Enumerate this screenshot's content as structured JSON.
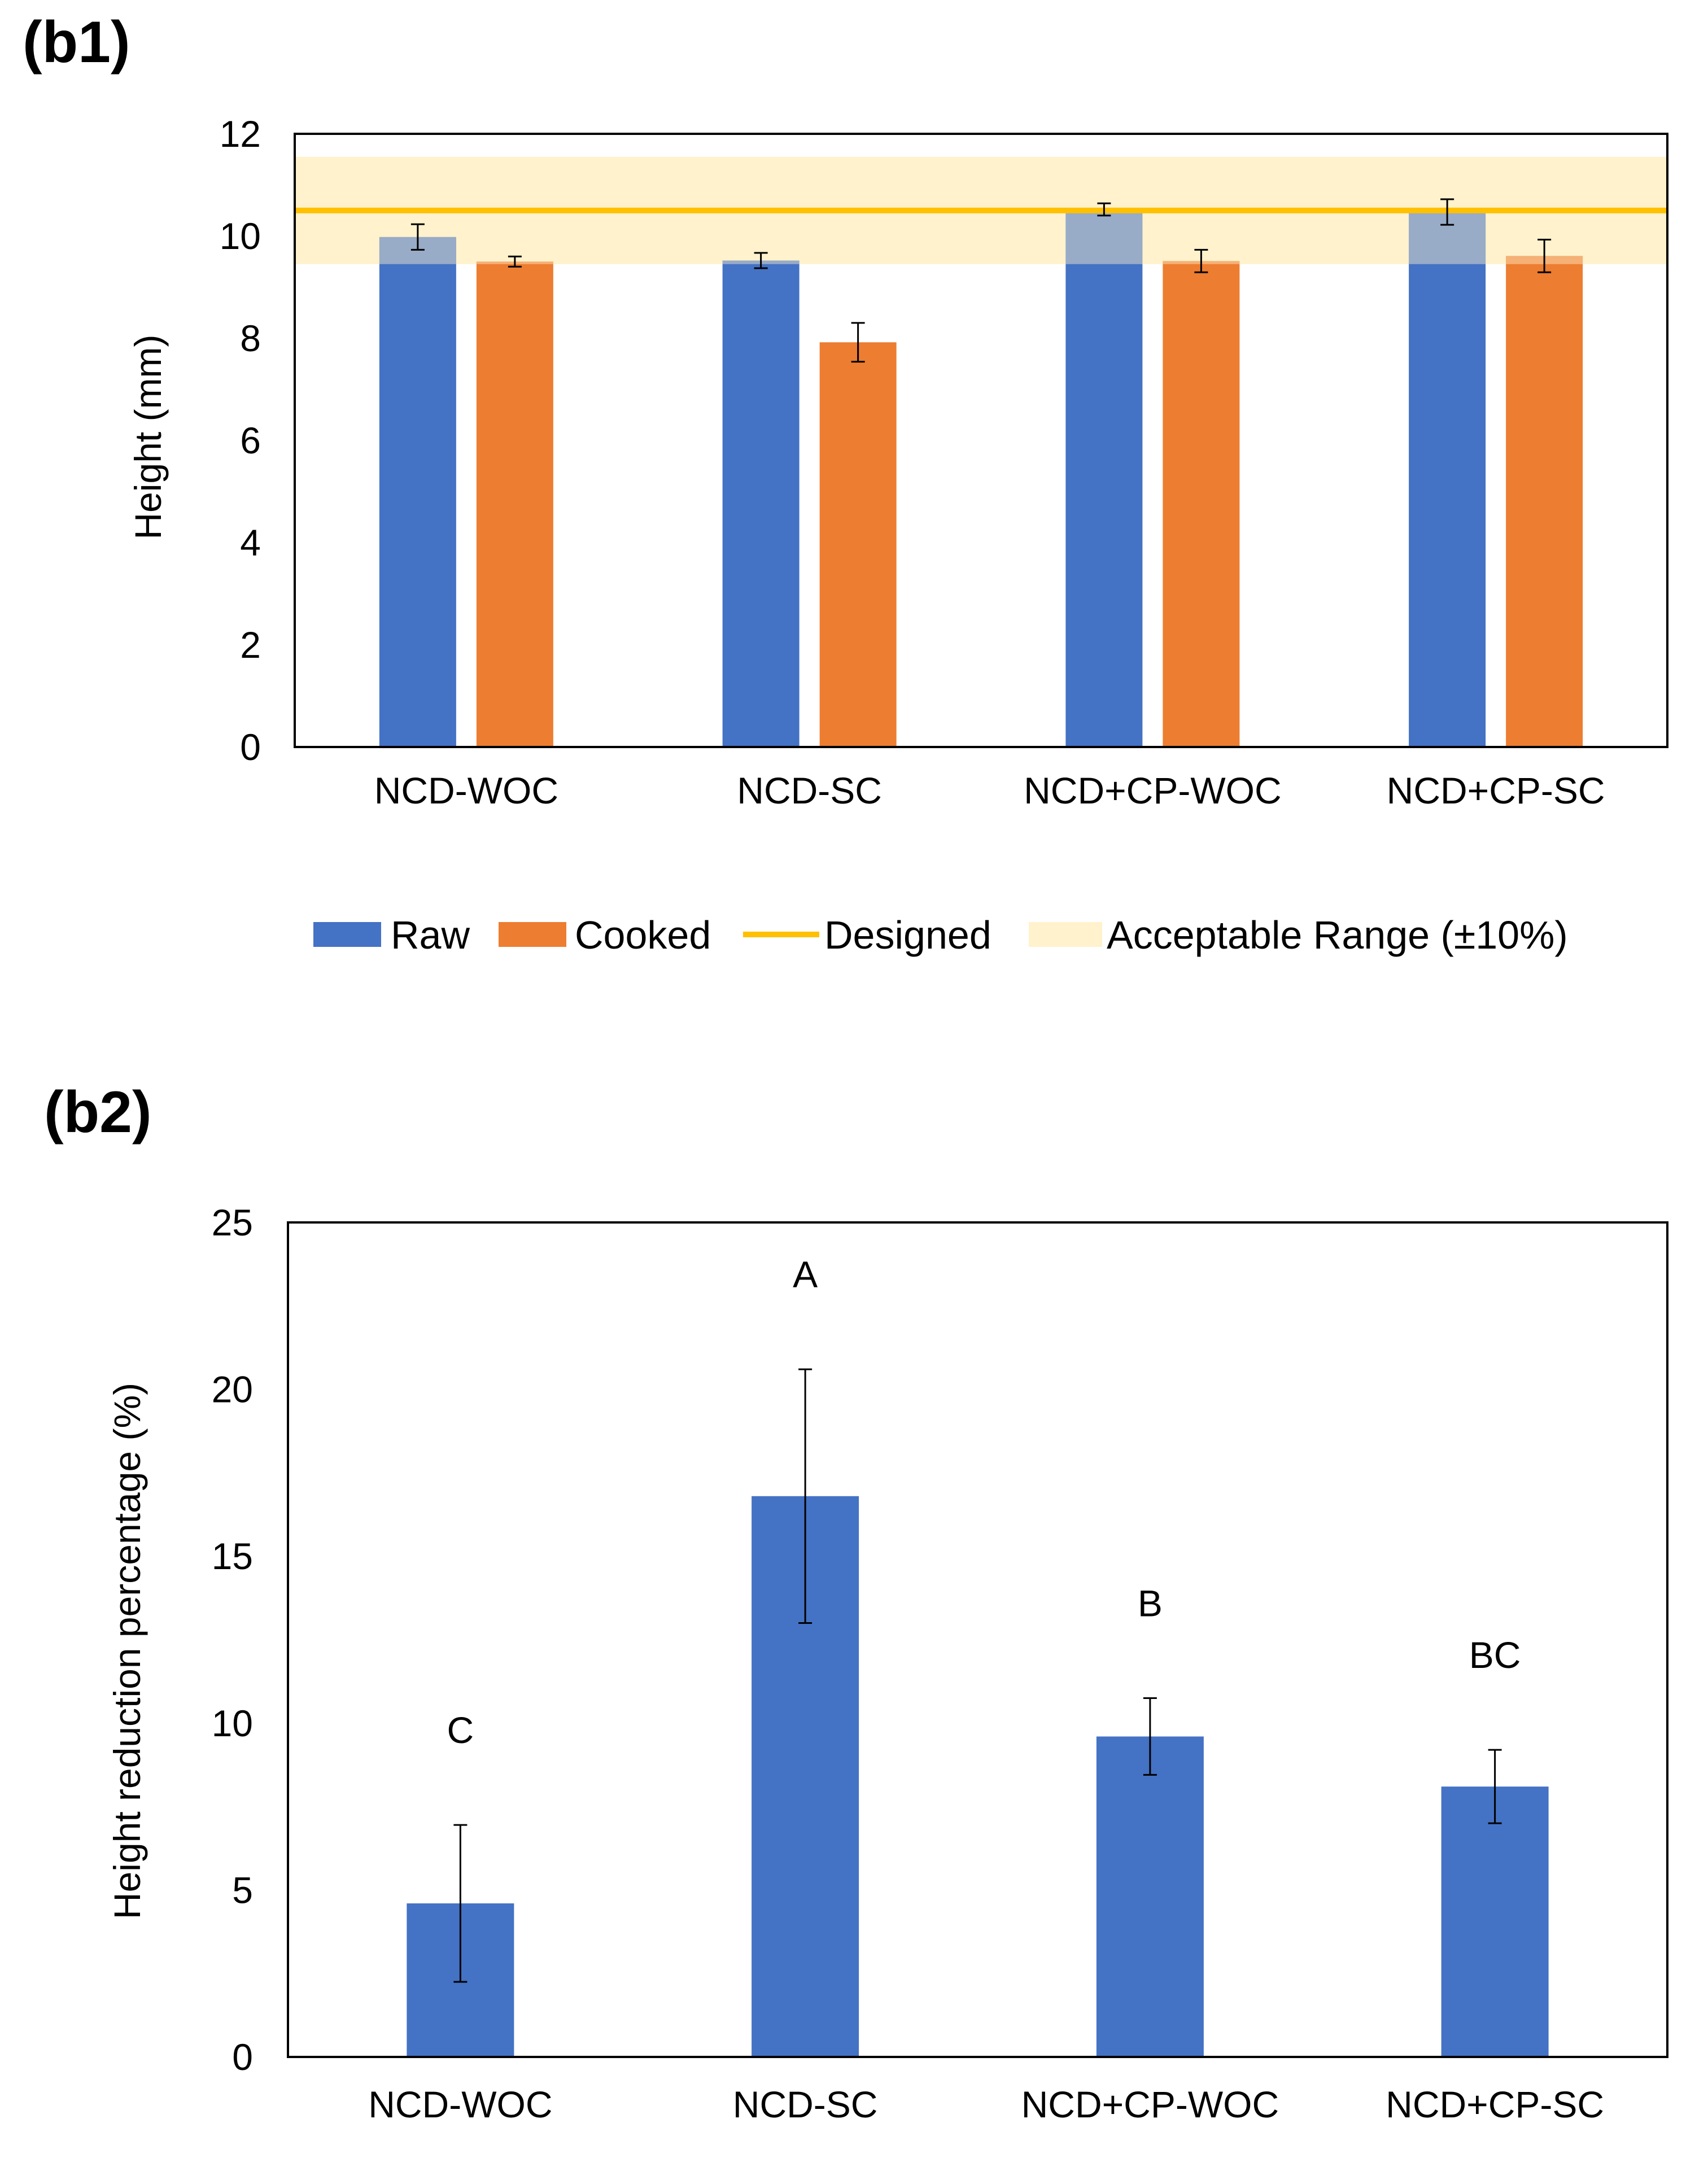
{
  "chart_data": [
    {
      "panel_label": "(b1)",
      "type": "bar",
      "categories": [
        "NCD-WOC",
        "NCD-SC",
        "NCD+CP-WOC",
        "NCD+CP-SC"
      ],
      "series": [
        {
          "name": "Raw",
          "values": [
            9.98,
            9.52,
            10.52,
            10.47
          ],
          "errors": [
            0.25,
            0.15,
            0.12,
            0.25
          ]
        },
        {
          "name": "Cooked",
          "values": [
            9.5,
            7.92,
            9.51,
            9.61
          ],
          "errors": [
            0.1,
            0.38,
            0.22,
            0.32
          ]
        }
      ],
      "reference_line": {
        "name": "Designed",
        "value": 10.5
      },
      "reference_band": {
        "name": "Acceptable Range (±10%)",
        "min": 9.45,
        "max": 11.55
      },
      "title": "",
      "xlabel": "",
      "ylabel": "Height (mm)",
      "ylim": [
        0,
        12
      ],
      "yticks": [
        0,
        2,
        4,
        6,
        8,
        10,
        12
      ],
      "ytick_labels": [
        "0",
        "2",
        "4",
        "6",
        "8",
        "10",
        "12"
      ],
      "grid": false,
      "legend": [
        "Raw",
        "Cooked",
        "Designed",
        "Acceptable Range (±10%)"
      ],
      "legend_position": "bottom"
    },
    {
      "panel_label": "(b2)",
      "type": "bar",
      "categories": [
        "NCD-WOC",
        "NCD-SC",
        "NCD+CP-WOC",
        "NCD+CP-SC"
      ],
      "series": [
        {
          "name": "Height reduction percentage",
          "values": [
            4.6,
            16.8,
            9.6,
            8.1
          ],
          "errors": [
            2.35,
            3.8,
            1.15,
            1.1
          ]
        }
      ],
      "annotations": [
        "C",
        "A",
        "B",
        "BC"
      ],
      "title": "",
      "xlabel": "",
      "ylabel": "Height reduction percentage (%)",
      "ylim": [
        0,
        25
      ],
      "yticks": [
        0,
        5,
        10,
        15,
        20,
        25
      ],
      "ytick_labels": [
        "0",
        "5",
        "10",
        "15",
        "20",
        "25"
      ],
      "grid": false,
      "legend": [],
      "legend_position": "none"
    }
  ],
  "colors": {
    "raw": "#4472C4",
    "cooked": "#ED7D31",
    "designed": "#FFC000",
    "band": "#FFF2CC",
    "axis": "#000000"
  }
}
